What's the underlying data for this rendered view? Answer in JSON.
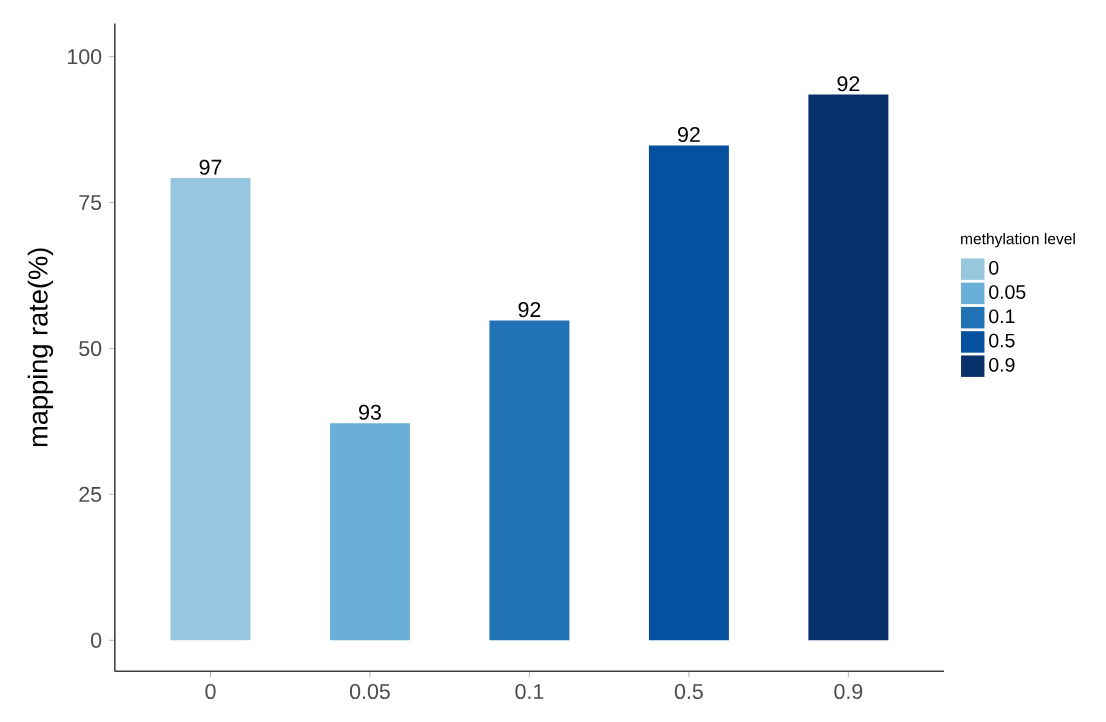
{
  "chart_data": {
    "type": "bar",
    "ylabel": "mapping rate(%)",
    "legend_title": "methylation level",
    "legend": "right",
    "stacked": true,
    "categories": [
      "0",
      "0.05",
      "0.1",
      "0.5",
      "0.9"
    ],
    "series": [
      {
        "name": "0",
        "color": "#97c6df",
        "values": [
          79.2,
          null,
          null,
          null,
          null
        ]
      },
      {
        "name": "0.05",
        "color": "#6aafd8",
        "values": [
          null,
          37.2,
          null,
          null,
          null
        ]
      },
      {
        "name": "0.1",
        "color": "#2171b5",
        "values": [
          null,
          null,
          54.8,
          null,
          null
        ]
      },
      {
        "name": "0.5",
        "color": "#0650a0",
        "values": [
          null,
          null,
          null,
          84.8,
          null
        ]
      },
      {
        "name": "0.9",
        "color": "#08306b",
        "values": [
          null,
          null,
          null,
          null,
          93.5
        ]
      }
    ],
    "annotations": [
      {
        "text": "97",
        "x": "0",
        "y": 79.2
      },
      {
        "text": "93",
        "x": "0.05",
        "y": 37.2
      },
      {
        "text": "92",
        "x": "0.1",
        "y": 54.8
      },
      {
        "text": "92",
        "x": "0.5",
        "y": 84.8
      },
      {
        "text": "92",
        "x": "0.9",
        "y": 93.5
      }
    ],
    "ylim": [
      -5.3,
      105.7
    ],
    "yticks": [
      0,
      25,
      50,
      75,
      100
    ],
    "grid": false
  }
}
